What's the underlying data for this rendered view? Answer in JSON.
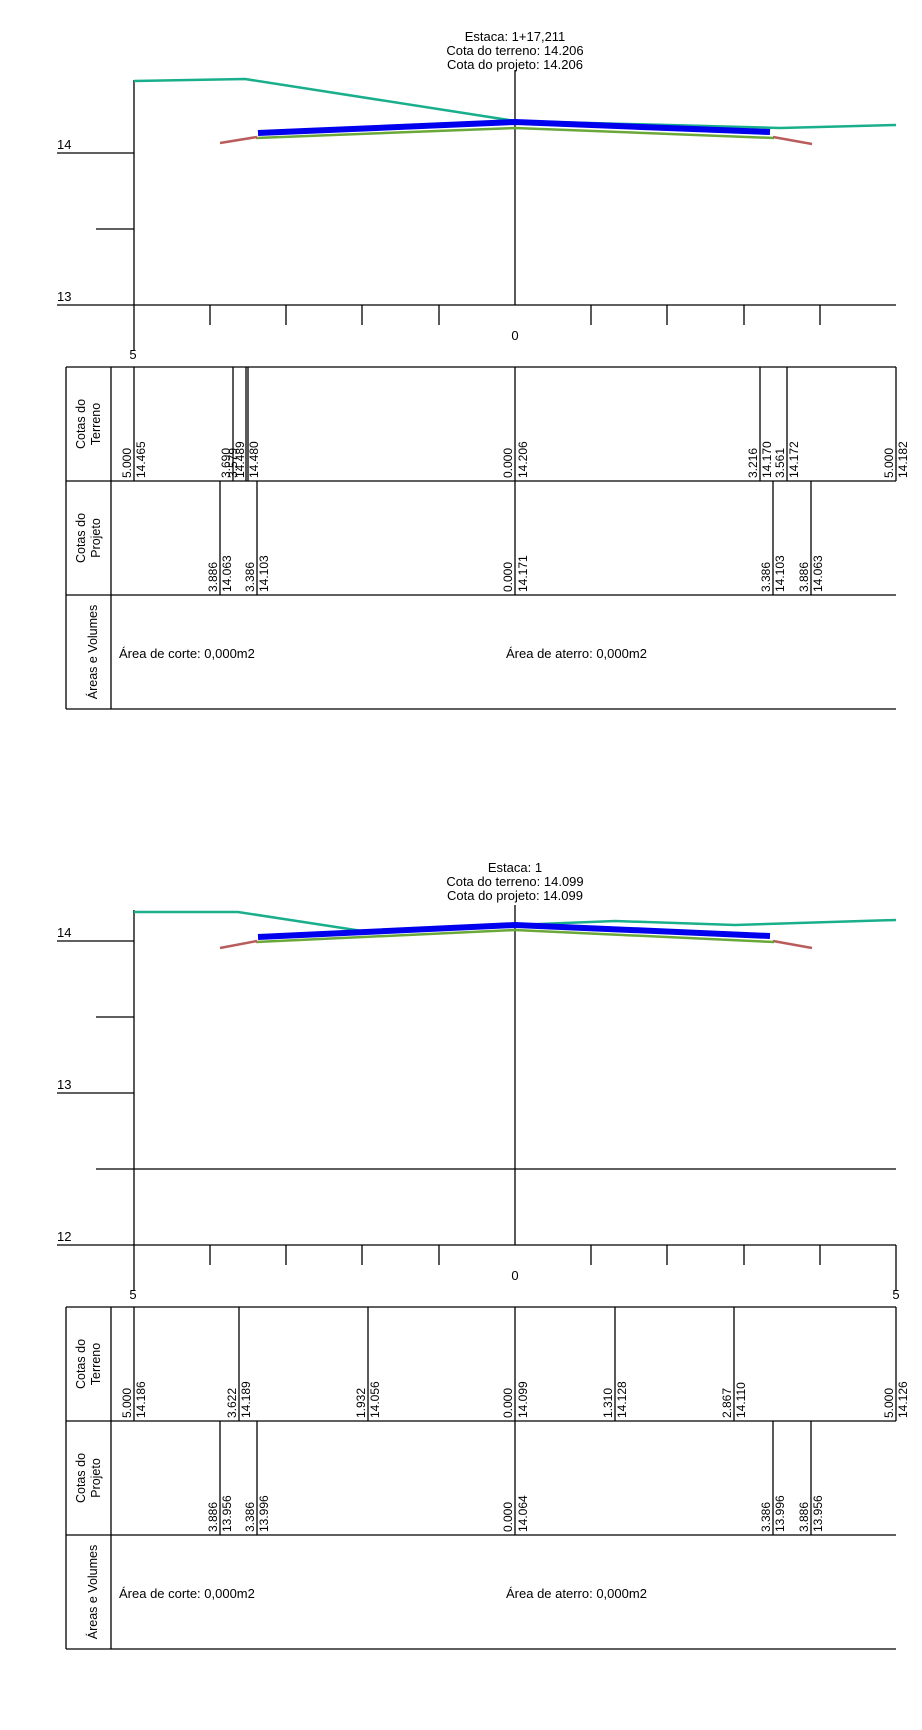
{
  "sections": [
    {
      "header": {
        "station": "Estaca: 1+17,211",
        "terrain_elev": "Cota do terreno: 14.206",
        "project_elev": "Cota do projeto: 14.206"
      },
      "y_labels": [
        "14",
        "13"
      ],
      "x_labels": [
        "5",
        "0"
      ],
      "rows": {
        "terreno_title": [
          "Cotas do",
          "Terreno"
        ],
        "projeto_title": [
          "Cotas do",
          "Projeto"
        ],
        "areas_title": "Áreas e Volumes"
      },
      "terrain_values": [
        {
          "dist": "5.000",
          "elev": "14.465"
        },
        {
          "dist": "3.690",
          "elev": "14.489"
        },
        {
          "dist": "3.579",
          "elev": "14.480"
        },
        {
          "dist": "0.000",
          "elev": "14.206"
        },
        {
          "dist": "3.216",
          "elev": "14.170"
        },
        {
          "dist": "3.561",
          "elev": "14.172"
        },
        {
          "dist": "5.000",
          "elev": "14.182"
        }
      ],
      "project_values": [
        {
          "dist": "3.886",
          "elev": "14.063"
        },
        {
          "dist": "3.386",
          "elev": "14.103"
        },
        {
          "dist": "0.000",
          "elev": "14.171"
        },
        {
          "dist": "3.386",
          "elev": "14.103"
        },
        {
          "dist": "3.886",
          "elev": "14.063"
        }
      ],
      "area_corte": "Área de corte: 0,000m2",
      "area_aterro": "Área de aterro: 0,000m2"
    },
    {
      "header": {
        "station": "Estaca: 1",
        "terrain_elev": "Cota do terreno: 14.099",
        "project_elev": "Cota do projeto: 14.099"
      },
      "y_labels": [
        "14",
        "13",
        "12"
      ],
      "x_labels": [
        "5",
        "0",
        "5"
      ],
      "rows": {
        "terreno_title": [
          "Cotas do",
          "Terreno"
        ],
        "projeto_title": [
          "Cotas do",
          "Projeto"
        ],
        "areas_title": "Áreas e Volumes"
      },
      "terrain_values": [
        {
          "dist": "5.000",
          "elev": "14.186"
        },
        {
          "dist": "3.622",
          "elev": "14.189"
        },
        {
          "dist": "1.932",
          "elev": "14.056"
        },
        {
          "dist": "0.000",
          "elev": "14.099"
        },
        {
          "dist": "1.310",
          "elev": "14.128"
        },
        {
          "dist": "2.867",
          "elev": "14.110"
        },
        {
          "dist": "5.000",
          "elev": "14.126"
        }
      ],
      "project_values": [
        {
          "dist": "3.886",
          "elev": "13.956"
        },
        {
          "dist": "3.386",
          "elev": "13.996"
        },
        {
          "dist": "0.000",
          "elev": "14.064"
        },
        {
          "dist": "3.386",
          "elev": "13.996"
        },
        {
          "dist": "3.886",
          "elev": "13.956"
        }
      ],
      "area_corte": "Área de corte: 0,000m2",
      "area_aterro": "Área de aterro: 0,000m2"
    }
  ],
  "colors": {
    "terrain": "#1aaf8c",
    "pavement": "#0000ee",
    "subgrade": "#6aa83a",
    "slope": "#b85c5c",
    "frame": "#000000"
  }
}
